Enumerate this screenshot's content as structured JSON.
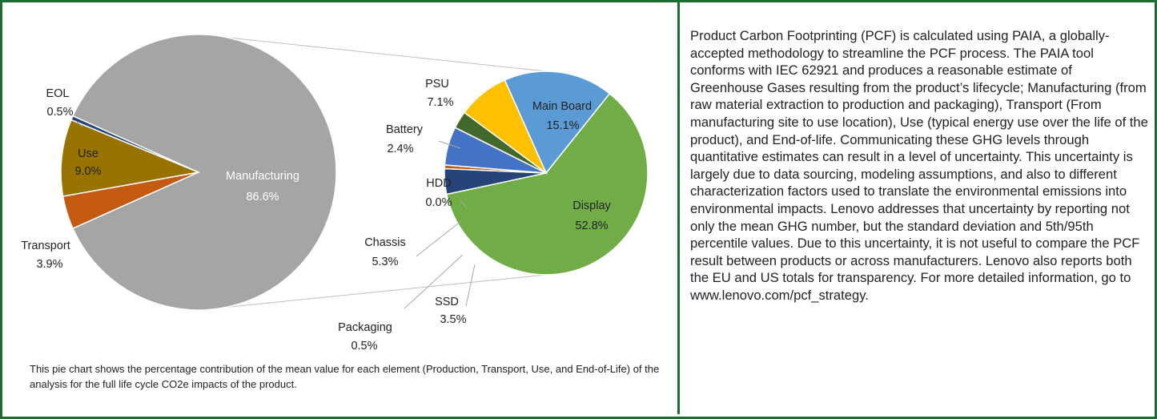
{
  "chart_data": [
    {
      "type": "pie",
      "categories": [
        "Transport",
        "Use",
        "EOL",
        "Manufacturing"
      ],
      "values": [
        3.9,
        9.0,
        0.5,
        86.6
      ],
      "value_labels": [
        "3.9%",
        "9.0%",
        "0.5%",
        "86.6%"
      ],
      "colors": [
        "#c55a11",
        "#997300",
        "#264478",
        "#a5a5a5"
      ]
    },
    {
      "type": "pie",
      "categories": [
        "Main Board",
        "Display",
        "SSD",
        "Packaging",
        "Chassis",
        "HDD",
        "Battery",
        "PSU"
      ],
      "values": [
        15.1,
        52.8,
        3.5,
        0.5,
        5.3,
        0.0,
        2.4,
        7.1
      ],
      "value_labels": [
        "15.1%",
        "52.8%",
        "3.5%",
        "0.5%",
        "5.3%",
        "0.0%",
        "2.4%",
        "7.1%"
      ],
      "colors": [
        "#5b9bd5",
        "#70ad47",
        "#264478",
        "#c55a11",
        "#4472c4",
        "#636363",
        "#43682b",
        "#ffc000"
      ]
    }
  ],
  "caption": "This pie chart shows the percentage contribution of the mean value for each element (Production, Transport, Use, and End-of-Life) of the analysis for the full life cycle CO2e impacts of the product.",
  "description": "Product Carbon Footprinting (PCF) is calculated using PAIA, a globally-accepted methodology to streamline the PCF process. The PAIA tool conforms with IEC 62921 and produces a reasonable estimate of Greenhouse Gases resulting from the product’s lifecycle; Manufacturing (from raw material extraction to production and packaging), Transport (From manufacturing site to use location), Use (typical energy use over the life of the product), and End-of-life. Communicating these GHG levels through quantitative estimates can result in a level of uncertainty. This uncertainty is largely due to data sourcing, modeling assumptions, and also to different characterization factors used to translate the environmental emissions into environmental impacts. Lenovo addresses that uncertainty by reporting not only the mean GHG number, but the standard deviation and 5th/95th percentile values. Due to this uncertainty, it is not useful to compare the PCF result between products or across manufacturers. Lenovo also reports both the EU and US totals for transparency. For more detailed information, go to www.lenovo.com/pcf_strategy."
}
